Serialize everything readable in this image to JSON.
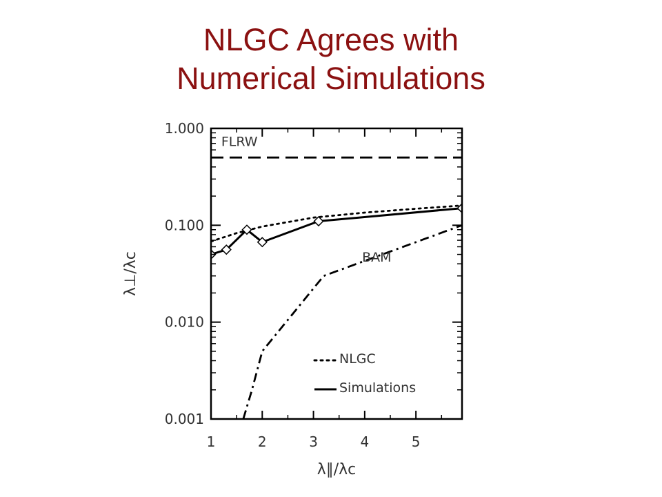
{
  "slide": {
    "title_line1": "NLGC Agrees with",
    "title_line2": "Numerical Simulations"
  },
  "chart_data": {
    "type": "line",
    "xlabel": "λ∥/λc",
    "ylabel": "λ⊥/λc",
    "xlim": [
      1,
      5.9
    ],
    "ylim": [
      0.001,
      1.0
    ],
    "yscale": "log",
    "xticks": [
      1,
      2,
      3,
      4,
      5
    ],
    "xtick_labels": [
      "1",
      "2",
      "3",
      "4",
      "5"
    ],
    "yticks": [
      0.001,
      0.01,
      0.1,
      1.0
    ],
    "ytick_labels": [
      "0.001",
      "0.010",
      "0.100",
      "1.000"
    ],
    "grid": false,
    "series": [
      {
        "name": "FLRW",
        "style": "dashed",
        "marker": "none",
        "x": [
          1,
          5.9
        ],
        "y": [
          0.5,
          0.5
        ]
      },
      {
        "name": "NLGC",
        "style": "dotted",
        "marker": "none",
        "x": [
          1,
          1.5,
          2,
          3,
          4,
          5,
          5.9
        ],
        "y": [
          0.068,
          0.083,
          0.097,
          0.12,
          0.135,
          0.148,
          0.16
        ]
      },
      {
        "name": "Simulations",
        "style": "solid",
        "marker": "diamond",
        "x": [
          1,
          1.3,
          1.7,
          2,
          3.1,
          5.9
        ],
        "y": [
          0.05,
          0.056,
          0.09,
          0.067,
          0.11,
          0.15
        ]
      },
      {
        "name": "BAM",
        "style": "dashdot",
        "marker": "none",
        "x": [
          1.63,
          1.8,
          2.0,
          3.2,
          5.9
        ],
        "y": [
          0.001,
          0.002,
          0.005,
          0.03,
          0.1
        ]
      }
    ],
    "annotations": [
      {
        "text": "FLRW",
        "x": 1.2,
        "y": 0.66
      },
      {
        "text": "BAM",
        "x": 3.95,
        "y": 0.042
      }
    ],
    "legend": {
      "placement": "bottom-right",
      "entries": [
        {
          "name": "NLGC",
          "style": "dotted"
        },
        {
          "name": "Simulations",
          "style": "solid"
        }
      ]
    }
  }
}
